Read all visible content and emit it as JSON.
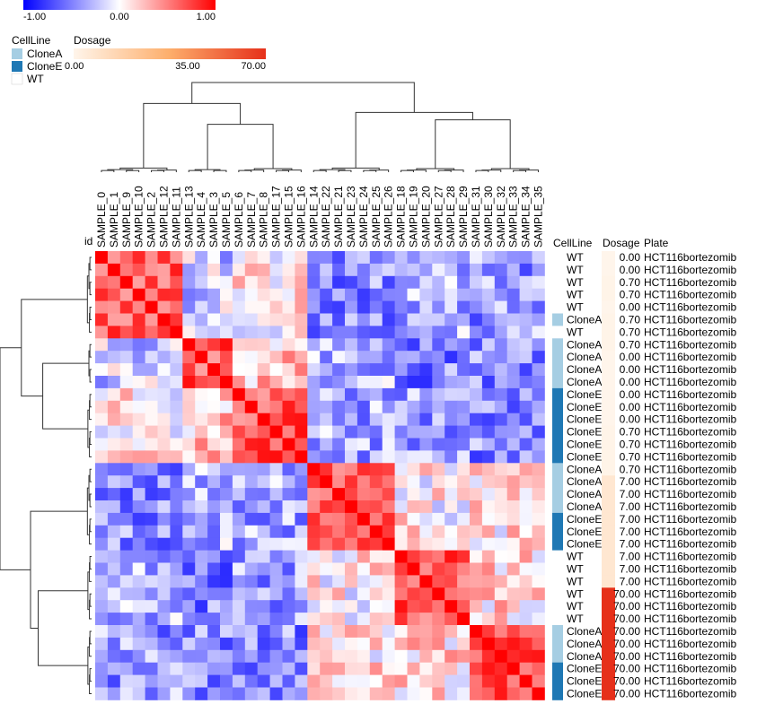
{
  "chart_data": {
    "type": "heatmap",
    "id_label": "id",
    "columns": [
      "SAMPLE_0",
      "SAMPLE_1",
      "SAMPLE_9",
      "SAMPLE_10",
      "SAMPLE_2",
      "SAMPLE_12",
      "SAMPLE_11",
      "SAMPLE_13",
      "SAMPLE_4",
      "SAMPLE_3",
      "SAMPLE_5",
      "SAMPLE_6",
      "SAMPLE_7",
      "SAMPLE_8",
      "SAMPLE_17",
      "SAMPLE_15",
      "SAMPLE_16",
      "SAMPLE_14",
      "SAMPLE_22",
      "SAMPLE_21",
      "SAMPLE_23",
      "SAMPLE_24",
      "SAMPLE_25",
      "SAMPLE_26",
      "SAMPLE_18",
      "SAMPLE_19",
      "SAMPLE_20",
      "SAMPLE_27",
      "SAMPLE_28",
      "SAMPLE_29",
      "SAMPLE_31",
      "SAMPLE_30",
      "SAMPLE_32",
      "SAMPLE_33",
      "SAMPLE_34",
      "SAMPLE_35"
    ],
    "row_headers": [
      "CellLine",
      "Dosage",
      "Plate"
    ],
    "rows": [
      {
        "cellline": "WT",
        "dosage": "0.00",
        "plate": "HCT116bortezomib"
      },
      {
        "cellline": "WT",
        "dosage": "0.00",
        "plate": "HCT116bortezomib"
      },
      {
        "cellline": "WT",
        "dosage": "0.70",
        "plate": "HCT116bortezomib"
      },
      {
        "cellline": "WT",
        "dosage": "0.70",
        "plate": "HCT116bortezomib"
      },
      {
        "cellline": "WT",
        "dosage": "0.00",
        "plate": "HCT116bortezomib"
      },
      {
        "cellline": "CloneA",
        "dosage": "0.70",
        "plate": "HCT116bortezomib"
      },
      {
        "cellline": "WT",
        "dosage": "0.70",
        "plate": "HCT116bortezomib"
      },
      {
        "cellline": "CloneA",
        "dosage": "0.70",
        "plate": "HCT116bortezomib"
      },
      {
        "cellline": "CloneA",
        "dosage": "0.00",
        "plate": "HCT116bortezomib"
      },
      {
        "cellline": "CloneA",
        "dosage": "0.00",
        "plate": "HCT116bortezomib"
      },
      {
        "cellline": "CloneA",
        "dosage": "0.00",
        "plate": "HCT116bortezomib"
      },
      {
        "cellline": "CloneE",
        "dosage": "0.00",
        "plate": "HCT116bortezomib"
      },
      {
        "cellline": "CloneE",
        "dosage": "0.00",
        "plate": "HCT116bortezomib"
      },
      {
        "cellline": "CloneE",
        "dosage": "0.00",
        "plate": "HCT116bortezomib"
      },
      {
        "cellline": "CloneE",
        "dosage": "0.70",
        "plate": "HCT116bortezomib"
      },
      {
        "cellline": "CloneE",
        "dosage": "0.70",
        "plate": "HCT116bortezomib"
      },
      {
        "cellline": "CloneE",
        "dosage": "0.70",
        "plate": "HCT116bortezomib"
      },
      {
        "cellline": "CloneA",
        "dosage": "0.70",
        "plate": "HCT116bortezomib"
      },
      {
        "cellline": "CloneA",
        "dosage": "7.00",
        "plate": "HCT116bortezomib"
      },
      {
        "cellline": "CloneA",
        "dosage": "7.00",
        "plate": "HCT116bortezomib"
      },
      {
        "cellline": "CloneA",
        "dosage": "7.00",
        "plate": "HCT116bortezomib"
      },
      {
        "cellline": "CloneE",
        "dosage": "7.00",
        "plate": "HCT116bortezomib"
      },
      {
        "cellline": "CloneE",
        "dosage": "7.00",
        "plate": "HCT116bortezomib"
      },
      {
        "cellline": "CloneE",
        "dosage": "7.00",
        "plate": "HCT116bortezomib"
      },
      {
        "cellline": "WT",
        "dosage": "7.00",
        "plate": "HCT116bortezomib"
      },
      {
        "cellline": "WT",
        "dosage": "7.00",
        "plate": "HCT116bortezomib"
      },
      {
        "cellline": "WT",
        "dosage": "7.00",
        "plate": "HCT116bortezomib"
      },
      {
        "cellline": "WT",
        "dosage": "70.00",
        "plate": "HCT116bortezomib"
      },
      {
        "cellline": "WT",
        "dosage": "70.00",
        "plate": "HCT116bortezomib"
      },
      {
        "cellline": "WT",
        "dosage": "70.00",
        "plate": "HCT116bortezomib"
      },
      {
        "cellline": "CloneA",
        "dosage": "70.00",
        "plate": "HCT116bortezomib"
      },
      {
        "cellline": "CloneA",
        "dosage": "70.00",
        "plate": "HCT116bortezomib"
      },
      {
        "cellline": "CloneA",
        "dosage": "70.00",
        "plate": "HCT116bortezomib"
      },
      {
        "cellline": "CloneE",
        "dosage": "70.00",
        "plate": "HCT116bortezomib"
      },
      {
        "cellline": "CloneE",
        "dosage": "70.00",
        "plate": "HCT116bortezomib"
      },
      {
        "cellline": "CloneE",
        "dosage": "70.00",
        "plate": "HCT116bortezomib"
      }
    ],
    "value_range": [
      -1.0,
      1.0
    ],
    "value_scale": {
      "tick_labels": [
        "-1.00",
        "0.00",
        "1.00"
      ],
      "colors": {
        "low": "#0000ff",
        "mid": "#ffffff",
        "high": "#ff0000"
      }
    },
    "cellline_legend": {
      "title": "CellLine",
      "items": [
        {
          "name": "CloneA",
          "color": "#a6cee3"
        },
        {
          "name": "CloneE",
          "color": "#1f78b4"
        },
        {
          "name": "WT",
          "color": "#ffffff"
        }
      ]
    },
    "dosage_legend": {
      "title": "Dosage",
      "tick_labels": [
        "0.00",
        "35.00",
        "70.00"
      ],
      "range": [
        0,
        70
      ],
      "colors": {
        "low": "#fff5eb",
        "mid": "#fdae6b",
        "high": "#e6301a"
      }
    },
    "block_clusters": [
      [
        0,
        6
      ],
      [
        7,
        10
      ],
      [
        11,
        16
      ],
      [
        17,
        23
      ],
      [
        24,
        29
      ],
      [
        30,
        35
      ]
    ],
    "diagonal_value": 1.0,
    "within_cluster_value": 0.65,
    "between_cluster_value": -0.25,
    "cluster_affinity": [
      [
        0,
        -0.2,
        0.05,
        -0.45,
        -0.3,
        -0.4
      ],
      [
        -0.2,
        0,
        0.25,
        -0.3,
        -0.5,
        -0.45
      ],
      [
        0.05,
        0.25,
        0,
        -0.35,
        -0.4,
        -0.45
      ],
      [
        -0.45,
        -0.3,
        -0.35,
        0,
        0.05,
        0.1
      ],
      [
        -0.3,
        -0.5,
        -0.4,
        0.05,
        0,
        0.15
      ],
      [
        -0.4,
        -0.45,
        -0.45,
        0.1,
        0.15,
        0
      ]
    ]
  }
}
